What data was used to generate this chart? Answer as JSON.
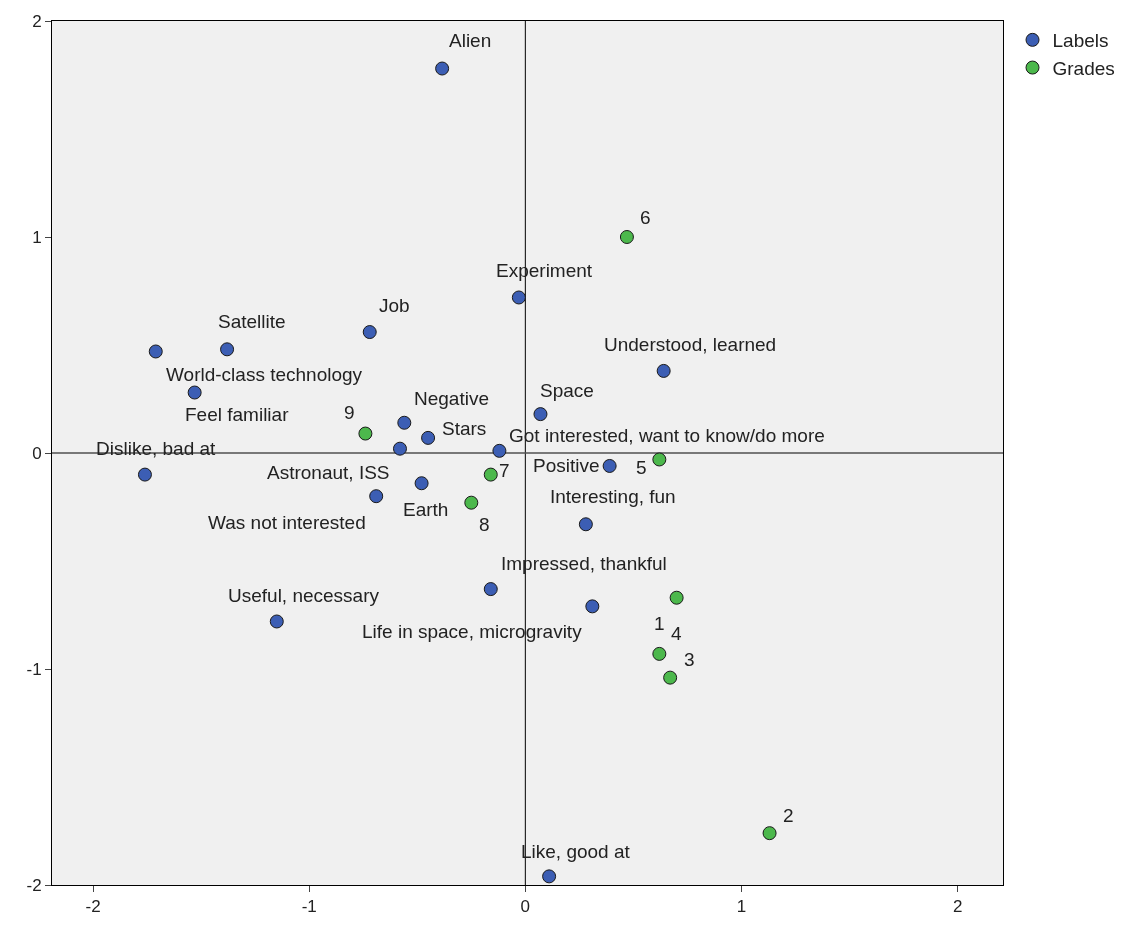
{
  "chart_data": {
    "type": "scatter",
    "xlim": [
      -2.19,
      2.21
    ],
    "ylim": [
      -2,
      2
    ],
    "xticks": [
      -2,
      -1,
      0,
      1,
      2
    ],
    "yticks": [
      -2,
      -1,
      0,
      1,
      2
    ],
    "grid": false,
    "legend": "top right",
    "marker": "circle",
    "ref_lines": [
      {
        "axis": "x",
        "value": 0,
        "color": "#000000"
      },
      {
        "axis": "y",
        "value": 0,
        "color": "#505050"
      }
    ],
    "series": [
      {
        "name": "Labels",
        "color": "#3c5eb4",
        "x": [
          -0.385,
          -0.03,
          -0.72,
          -1.38,
          -1.71,
          -1.53,
          0.64,
          0.07,
          -0.56,
          -0.45,
          -0.48,
          -0.12,
          -1.76,
          0.39,
          -0.58,
          -0.69,
          0.28,
          -0.16,
          -1.15,
          0.31,
          0.11
        ],
        "values": [
          1.78,
          0.72,
          0.56,
          0.48,
          0.47,
          0.28,
          0.38,
          0.18,
          0.14,
          0.07,
          -0.14,
          0.01,
          -0.1,
          -0.06,
          0.02,
          -0.2,
          -0.33,
          -0.63,
          -0.78,
          -0.71,
          -1.96
        ]
      },
      {
        "name": "Grades",
        "color": "#4cb84c",
        "x": [
          0.47,
          -0.74,
          0.62,
          -0.16,
          -0.25,
          0.62,
          0.7,
          0.67,
          1.13
        ],
        "values": [
          1.0,
          0.09,
          -0.03,
          -0.1,
          -0.23,
          -0.93,
          -0.67,
          -1.04,
          -1.76
        ]
      }
    ],
    "annotations": [
      {
        "text": "Alien",
        "x": -0.385,
        "y": 1.78
      },
      {
        "text": "Experiment",
        "x": -0.03,
        "y": 0.72
      },
      {
        "text": "Job",
        "x": -0.72,
        "y": 0.56
      },
      {
        "text": "Satellite",
        "x": -1.38,
        "y": 0.48
      },
      {
        "text": "World-class technology",
        "x": -1.71,
        "y": 0.47
      },
      {
        "text": "Feel familiar",
        "x": -1.53,
        "y": 0.28
      },
      {
        "text": "Understood, learned",
        "x": 0.64,
        "y": 0.38
      },
      {
        "text": "Space",
        "x": 0.07,
        "y": 0.18
      },
      {
        "text": "Negative",
        "x": -0.56,
        "y": 0.14
      },
      {
        "text": "Stars",
        "x": -0.45,
        "y": 0.07
      },
      {
        "text": "Earth",
        "x": -0.48,
        "y": -0.14
      },
      {
        "text": "Got interested, want to know/do more",
        "x": -0.12,
        "y": 0.01
      },
      {
        "text": "Dislike, bad at",
        "x": -1.76,
        "y": -0.1
      },
      {
        "text": "Positive",
        "x": 0.39,
        "y": -0.06
      },
      {
        "text": "Astronaut, ISS",
        "x": -0.58,
        "y": 0.02
      },
      {
        "text": "Was not interested",
        "x": -0.69,
        "y": -0.2
      },
      {
        "text": "Interesting, fun",
        "x": 0.28,
        "y": -0.33
      },
      {
        "text": "Impressed, thankful",
        "x": -0.16,
        "y": -0.63
      },
      {
        "text": "Useful, necessary",
        "x": -1.15,
        "y": -0.78
      },
      {
        "text": "Life in space, microgravity",
        "x": 0.31,
        "y": -0.71
      },
      {
        "text": "Like, good at",
        "x": 0.11,
        "y": -1.96
      },
      {
        "text": "6",
        "x": 0.47,
        "y": 1.0
      },
      {
        "text": "9",
        "x": -0.74,
        "y": 0.09
      },
      {
        "text": "5",
        "x": 0.62,
        "y": -0.03
      },
      {
        "text": "7",
        "x": -0.16,
        "y": -0.1
      },
      {
        "text": "8",
        "x": -0.25,
        "y": -0.23
      },
      {
        "text": "1",
        "x": 0.62,
        "y": -0.93
      },
      {
        "text": "4",
        "x": 0.7,
        "y": -0.67
      },
      {
        "text": "3",
        "x": 0.67,
        "y": -1.04
      },
      {
        "text": "2",
        "x": 1.13,
        "y": -1.76
      }
    ]
  }
}
